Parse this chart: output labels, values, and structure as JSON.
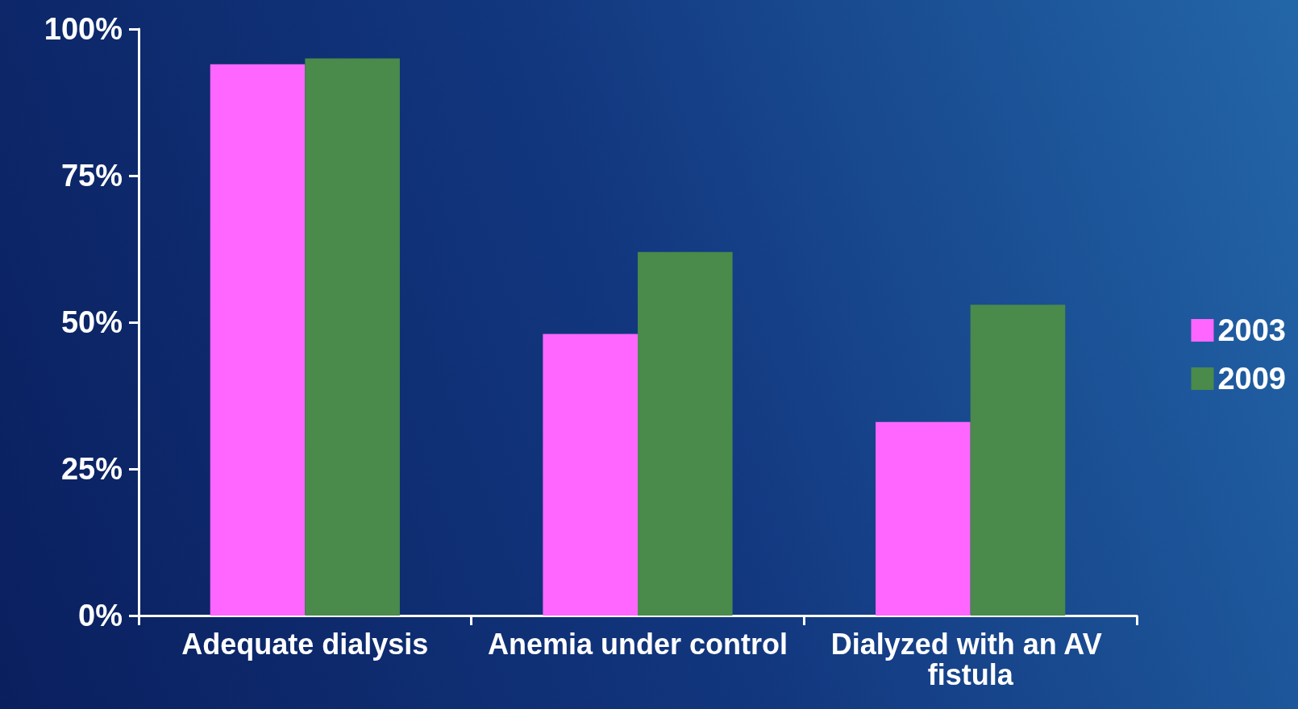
{
  "chart_data": {
    "type": "bar",
    "categories": [
      "Adequate dialysis",
      "Anemia under control",
      "Dialyzed with an AV fistula"
    ],
    "series": [
      {
        "name": "2003",
        "color": "#ff66ff",
        "values": [
          94,
          48,
          33
        ]
      },
      {
        "name": "2009",
        "color": "#4a8a4a",
        "values": [
          95,
          62,
          53
        ]
      }
    ],
    "ylim": [
      0,
      100
    ],
    "yticks": [
      {
        "value": 0,
        "label": "0%"
      },
      {
        "value": 25,
        "label": "25%"
      },
      {
        "value": 50,
        "label": "50%"
      },
      {
        "value": 75,
        "label": "75%"
      },
      {
        "value": 100,
        "label": "100%"
      }
    ],
    "grid": false,
    "legend": "right"
  }
}
